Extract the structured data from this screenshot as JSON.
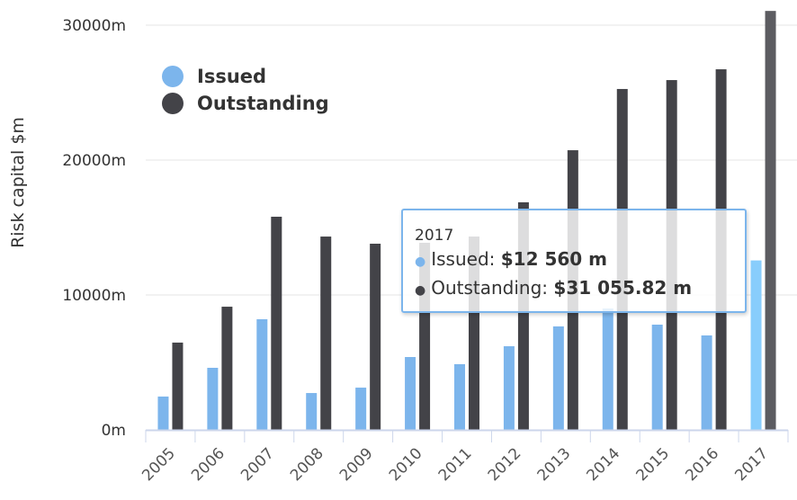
{
  "chart_data": {
    "type": "bar",
    "ylabel": "Risk capital $m",
    "ylim": [
      0,
      30000
    ],
    "yticks": [
      "0m",
      "10000m",
      "20000m",
      "30000m"
    ],
    "ytick_values": [
      0,
      10000,
      20000,
      30000
    ],
    "grid": true,
    "legend_placement": "top-left",
    "categories": [
      "2005",
      "2006",
      "2007",
      "2008",
      "2009",
      "2010",
      "2011",
      "2012",
      "2013",
      "2014",
      "2015",
      "2016",
      "2017"
    ],
    "series": [
      {
        "name": "Issued",
        "color": "#7cb5ec",
        "values": [
          2470,
          4600,
          8200,
          2730,
          3130,
          5400,
          4870,
          6200,
          7670,
          9000,
          7800,
          7000,
          12560
        ]
      },
      {
        "name": "Outstanding",
        "color": "#434348",
        "values": [
          6470,
          9130,
          15800,
          14330,
          13800,
          13870,
          14330,
          16870,
          20730,
          25270,
          25930,
          26730,
          31055.82
        ]
      }
    ],
    "highlighted_category": "2017"
  },
  "tooltip": {
    "title": "2017",
    "issued_label": "Issued:",
    "issued_value": "$12 560 m",
    "outstanding_label": "Outstanding:",
    "outstanding_value": "$31 055.82 m",
    "dot": "●"
  }
}
